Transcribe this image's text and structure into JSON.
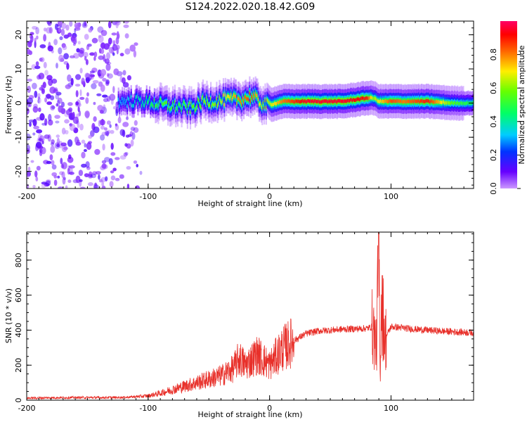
{
  "title": "S124.2022.020.18.42.G09",
  "chart_data": [
    {
      "type": "heatmap",
      "xlabel": "Height of straight line (km)",
      "ylabel": "Frequency (Hz)",
      "xlim": [
        -200,
        168
      ],
      "ylim": [
        -25,
        24
      ],
      "x_ticks": [
        -200,
        -100,
        0,
        100
      ],
      "y_ticks": [
        -20,
        -10,
        0,
        10,
        20
      ],
      "colorbar": {
        "label": "Normalized spectral amplitude",
        "range": [
          0,
          1
        ],
        "ticks": [
          "0.0",
          "0.2",
          "0.4",
          "0.6",
          "0.8"
        ]
      },
      "trace": {
        "x": [
          -125,
          -115,
          -105,
          -95,
          -85,
          -75,
          -65,
          -55,
          -45,
          -35,
          -25,
          -15,
          -5,
          0,
          10,
          30,
          60,
          80,
          85,
          90,
          100,
          110,
          130,
          150,
          168
        ],
        "frequency": [
          0.5,
          0.5,
          0.5,
          0.0,
          -0.8,
          -1.0,
          -1.5,
          0.5,
          0.5,
          1.0,
          1.0,
          2.0,
          -0.5,
          -0.5,
          0.5,
          0.5,
          0.5,
          1.5,
          1.5,
          0.5,
          0.5,
          0.5,
          0.5,
          0.0,
          0.0
        ],
        "peak_amplitude": [
          0.3,
          0.35,
          0.4,
          0.5,
          0.55,
          0.5,
          0.55,
          0.6,
          0.6,
          0.7,
          0.8,
          0.85,
          0.6,
          0.65,
          0.8,
          0.95,
          0.95,
          0.9,
          0.6,
          0.7,
          0.85,
          0.8,
          0.9,
          0.55,
          0.45
        ]
      },
      "noise_region_x": [
        -200,
        -105
      ]
    },
    {
      "type": "line",
      "xlabel": "Height of straight line (km)",
      "ylabel": "SNR (10 * v/v)",
      "xlim": [
        -200,
        168
      ],
      "ylim": [
        0,
        960
      ],
      "x_ticks": [
        -200,
        -100,
        0,
        100
      ],
      "y_ticks": [
        0,
        200,
        400,
        600,
        800
      ],
      "series": [
        {
          "color": "#e8302a",
          "x": [
            -200,
            -180,
            -160,
            -140,
            -120,
            -110,
            -100,
            -90,
            -80,
            -70,
            -60,
            -50,
            -40,
            -30,
            -25,
            -20,
            -10,
            0,
            10,
            20,
            30,
            40,
            60,
            80,
            85,
            88,
            90,
            91,
            92,
            95,
            100,
            120,
            140,
            168
          ],
          "values": [
            12,
            14,
            15,
            15,
            16,
            20,
            25,
            40,
            60,
            80,
            100,
            120,
            140,
            180,
            240,
            200,
            260,
            200,
            290,
            340,
            380,
            395,
            405,
            410,
            420,
            300,
            900,
            120,
            600,
            350,
            420,
            405,
            395,
            385
          ]
        }
      ]
    }
  ]
}
